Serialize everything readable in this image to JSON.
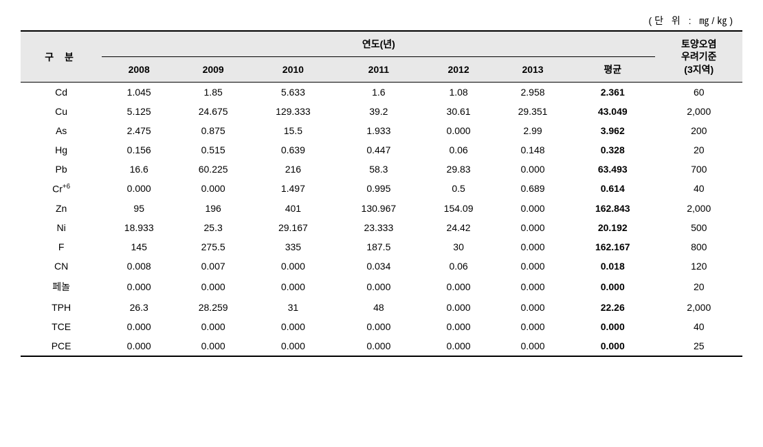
{
  "table": {
    "unit_label": "(단 위 : ㎎/㎏)",
    "headers": {
      "category": "구 분",
      "year_group": "연도(년)",
      "years": [
        "2008",
        "2009",
        "2010",
        "2011",
        "2012",
        "2013"
      ],
      "average": "평균",
      "standard_line1": "토양오염",
      "standard_line2": "우려기준",
      "standard_line3": "(3지역)"
    },
    "columns": [
      "label",
      "y2008",
      "y2009",
      "y2010",
      "y2011",
      "y2012",
      "y2013",
      "avg",
      "standard"
    ],
    "column_align": [
      "center",
      "center",
      "center",
      "center",
      "center",
      "center",
      "center",
      "center",
      "center"
    ],
    "rows": [
      {
        "label": "Cd",
        "y2008": "1.045",
        "y2009": "1.85",
        "y2010": "5.633",
        "y2011": "1.6",
        "y2012": "1.08",
        "y2013": "2.958",
        "avg": "2.361",
        "standard": "60"
      },
      {
        "label": "Cu",
        "y2008": "5.125",
        "y2009": "24.675",
        "y2010": "129.333",
        "y2011": "39.2",
        "y2012": "30.61",
        "y2013": "29.351",
        "avg": "43.049",
        "standard": "2,000"
      },
      {
        "label": "As",
        "y2008": "2.475",
        "y2009": "0.875",
        "y2010": "15.5",
        "y2011": "1.933",
        "y2012": "0.000",
        "y2013": "2.99",
        "avg": "3.962",
        "standard": "200"
      },
      {
        "label": "Hg",
        "y2008": "0.156",
        "y2009": "0.515",
        "y2010": "0.639",
        "y2011": "0.447",
        "y2012": "0.06",
        "y2013": "0.148",
        "avg": "0.328",
        "standard": "20"
      },
      {
        "label": "Pb",
        "y2008": "16.6",
        "y2009": "60.225",
        "y2010": "216",
        "y2011": "58.3",
        "y2012": "29.83",
        "y2013": "0.000",
        "avg": "63.493",
        "standard": "700"
      },
      {
        "label": "Cr",
        "label_sup": "+6",
        "y2008": "0.000",
        "y2009": "0.000",
        "y2010": "1.497",
        "y2011": "0.995",
        "y2012": "0.5",
        "y2013": "0.689",
        "avg": "0.614",
        "standard": "40"
      },
      {
        "label": "Zn",
        "y2008": "95",
        "y2009": "196",
        "y2010": "401",
        "y2011": "130.967",
        "y2012": "154.09",
        "y2013": "0.000",
        "avg": "162.843",
        "standard": "2,000"
      },
      {
        "label": "Ni",
        "y2008": "18.933",
        "y2009": "25.3",
        "y2010": "29.167",
        "y2011": "23.333",
        "y2012": "24.42",
        "y2013": "0.000",
        "avg": "20.192",
        "standard": "500"
      },
      {
        "label": "F",
        "y2008": "145",
        "y2009": "275.5",
        "y2010": "335",
        "y2011": "187.5",
        "y2012": "30",
        "y2013": "0.000",
        "avg": "162.167",
        "standard": "800"
      },
      {
        "label": "CN",
        "y2008": "0.008",
        "y2009": "0.007",
        "y2010": "0.000",
        "y2011": "0.034",
        "y2012": "0.06",
        "y2013": "0.000",
        "avg": "0.018",
        "standard": "120"
      },
      {
        "label": "페놀",
        "y2008": "0.000",
        "y2009": "0.000",
        "y2010": "0.000",
        "y2011": "0.000",
        "y2012": "0.000",
        "y2013": "0.000",
        "avg": "0.000",
        "standard": "20"
      },
      {
        "label": "TPH",
        "y2008": "26.3",
        "y2009": "28.259",
        "y2010": "31",
        "y2011": "48",
        "y2012": "0.000",
        "y2013": "0.000",
        "avg": "22.26",
        "standard": "2,000"
      },
      {
        "label": "TCE",
        "y2008": "0.000",
        "y2009": "0.000",
        "y2010": "0.000",
        "y2011": "0.000",
        "y2012": "0.000",
        "y2013": "0.000",
        "avg": "0.000",
        "standard": "40"
      },
      {
        "label": "PCE",
        "y2008": "0.000",
        "y2009": "0.000",
        "y2010": "0.000",
        "y2011": "0.000",
        "y2012": "0.000",
        "y2013": "0.000",
        "avg": "0.000",
        "standard": "25"
      }
    ],
    "styles": {
      "header_bg": "#e8e8e8",
      "border_color": "#000000",
      "font_size": 14,
      "avg_bold": true
    }
  }
}
